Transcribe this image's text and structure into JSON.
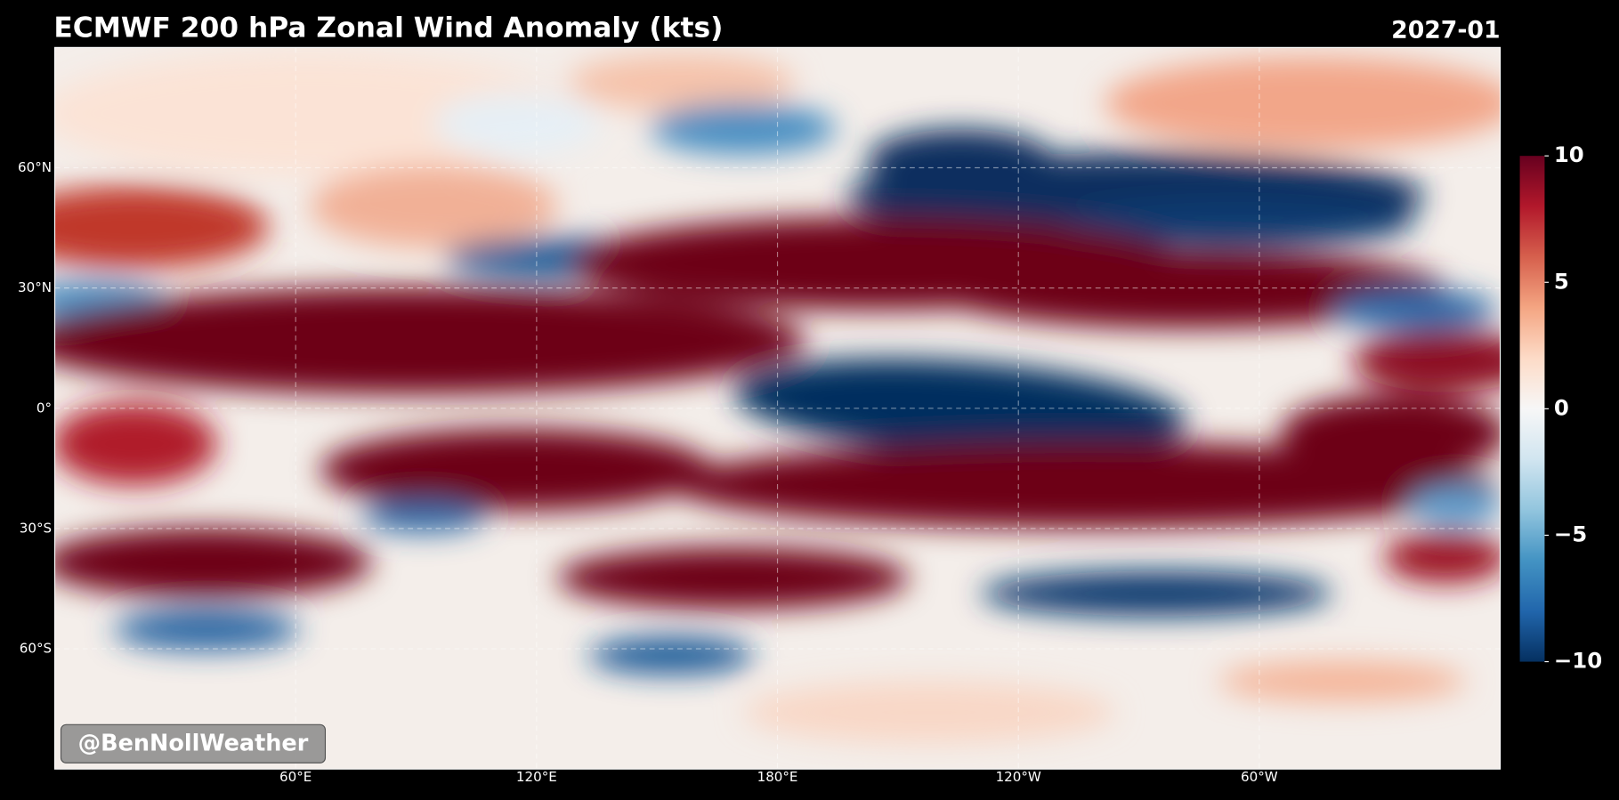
{
  "header": {
    "title": "ECMWF 200 hPa Zonal Wind Anomaly (kts)",
    "date": "2027-01"
  },
  "map": {
    "xlim": [
      0,
      360
    ],
    "ylim": [
      -90,
      90
    ],
    "grid": true,
    "lat_ticks": [
      {
        "value": 60,
        "label": "60°N"
      },
      {
        "value": 30,
        "label": "30°N"
      },
      {
        "value": 0,
        "label": "0°"
      },
      {
        "value": -30,
        "label": "30°S"
      },
      {
        "value": -60,
        "label": "60°S"
      }
    ],
    "lon_ticks": [
      {
        "value": 60,
        "label": "60°E"
      },
      {
        "value": 120,
        "label": "120°E"
      },
      {
        "value": 180,
        "label": "180°E"
      },
      {
        "value": 240,
        "label": "120°W"
      },
      {
        "value": 300,
        "label": "60°W"
      }
    ]
  },
  "colorbar": {
    "lim": [
      -10,
      10
    ],
    "ticks": [
      10,
      5,
      0,
      {
        "value": -5,
        "label": "−5"
      },
      {
        "value": -10,
        "label": "−10"
      }
    ],
    "colormap": [
      "#053061",
      "#2166ac",
      "#4393c3",
      "#92c5de",
      "#d1e5f0",
      "#f7f7f7",
      "#fddbc7",
      "#f4a582",
      "#d6604d",
      "#b2182b",
      "#67001f"
    ]
  },
  "watermark": "@BenNollWeather"
}
